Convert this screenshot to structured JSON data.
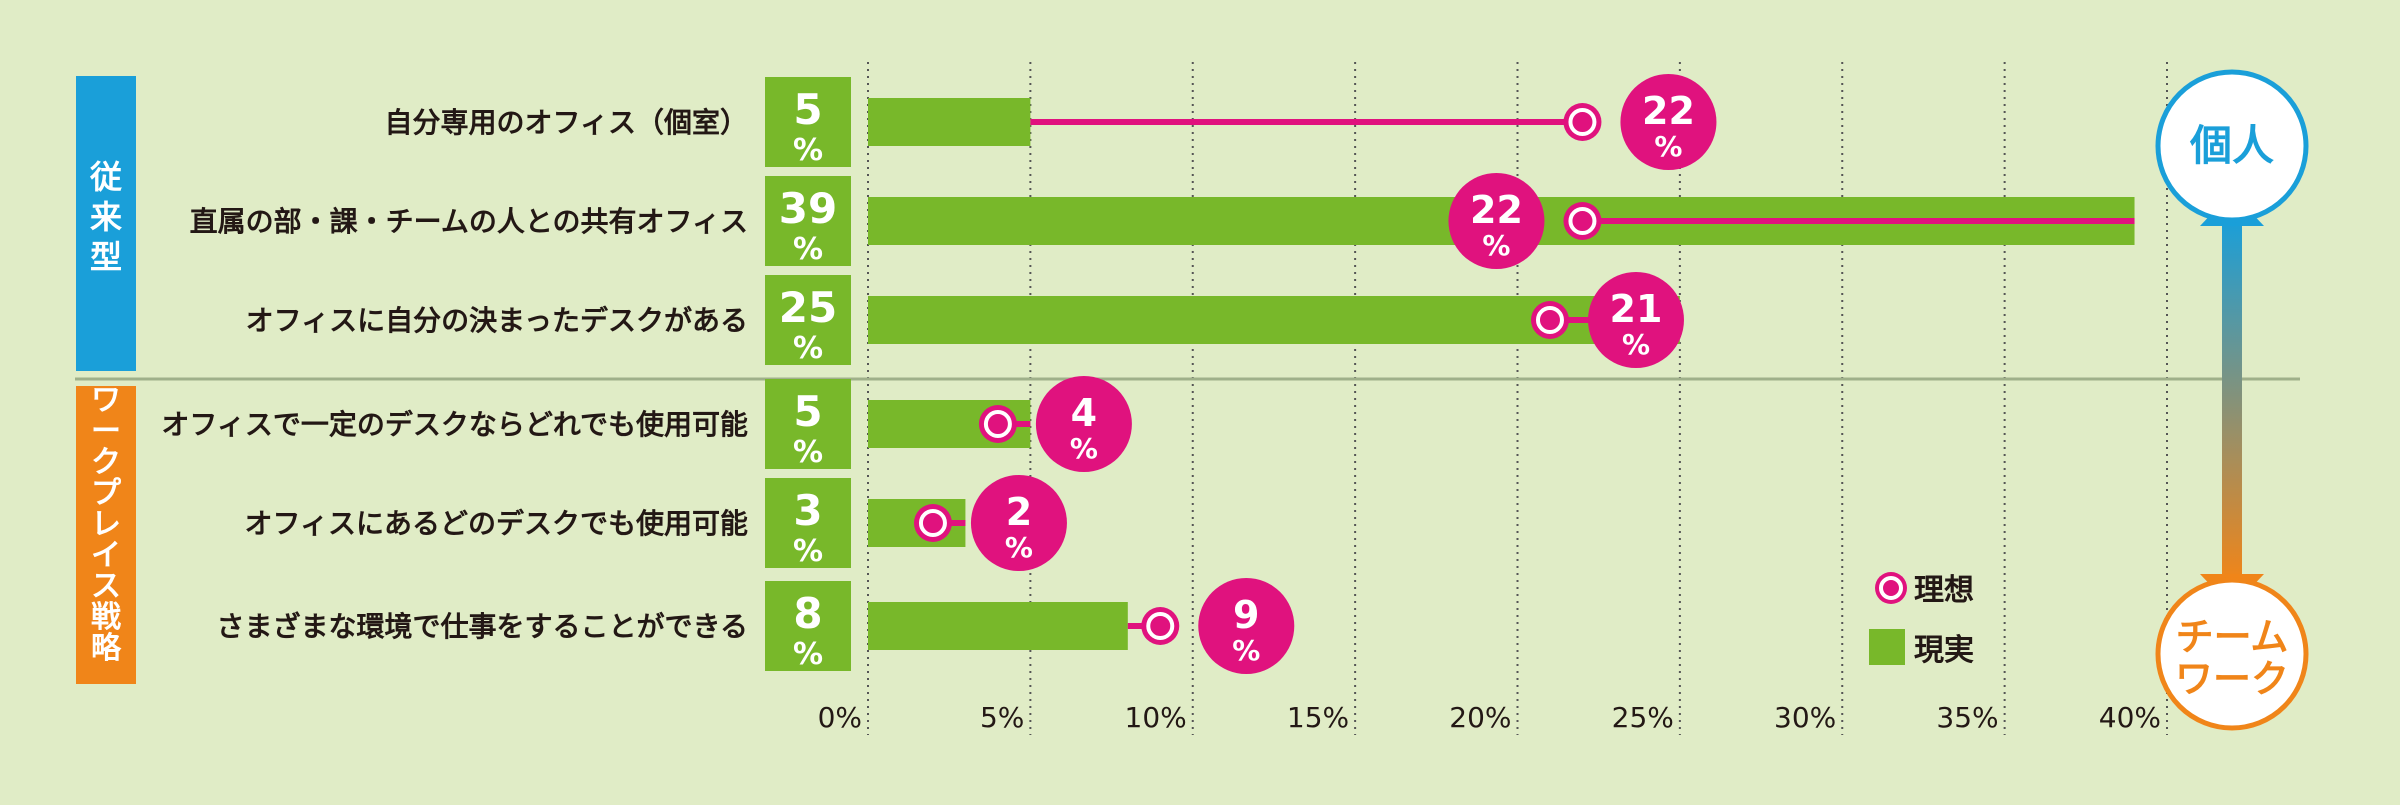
{
  "colors": {
    "background": "#e0ecc6",
    "bar": "#78b82a",
    "ideal": "#e0127e",
    "traditional": "#1a9fd9",
    "workplace": "#f08519",
    "individual_ring": "#1a9fd9",
    "team_ring": "#f08519",
    "text": "#231815"
  },
  "groups": [
    {
      "label": "従来型",
      "rows": [
        0,
        1,
        2
      ]
    },
    {
      "label": "ワークプレイス戦略",
      "rows": [
        3,
        4,
        5
      ]
    }
  ],
  "scale_labels": {
    "top": "個人",
    "bottom_line1": "チーム",
    "bottom_line2": "ワーク"
  },
  "pct_sign": "%",
  "chart_data": {
    "type": "bar",
    "categories": [
      "自分専用のオフィス（個室）",
      "直属の部・課・チームの人との共有オフィス",
      "オフィスに自分の決まったデスクがある",
      "オフィスで一定のデスクならどれでも使用可能",
      "オフィスにあるどのデスクでも使用可能",
      "さまざまな環境で仕事をすることができる"
    ],
    "series": [
      {
        "name": "現実",
        "values": [
          5,
          39,
          25,
          5,
          3,
          8
        ]
      },
      {
        "name": "理想",
        "values": [
          22,
          22,
          21,
          4,
          2,
          9
        ]
      }
    ],
    "xlim": [
      0,
      40
    ],
    "x_ticks": [
      "0%",
      "5%",
      "10%",
      "15%",
      "20%",
      "25%",
      "30%",
      "35%",
      "40%"
    ],
    "legend": [
      "理想",
      "現実"
    ],
    "legend_position": "bottom-right",
    "grid": "vertical-dotted"
  }
}
